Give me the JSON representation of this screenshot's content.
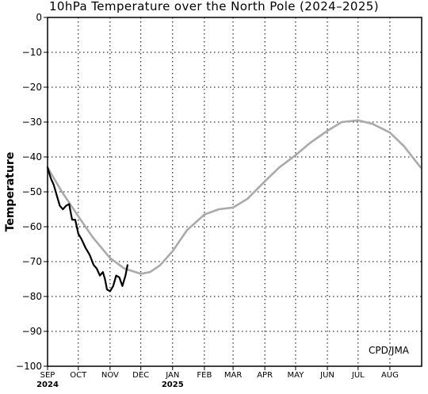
{
  "chart_data": {
    "type": "line",
    "title": "10hPa Temperature over the North Pole (2024–2025)",
    "ylabel": "Temperature",
    "xlabel": "",
    "ylim": [
      -100,
      0
    ],
    "yticks": [
      0,
      -10,
      -20,
      -30,
      -40,
      -50,
      -60,
      -70,
      -80,
      -90,
      -100
    ],
    "xlim": [
      "2024-09-01",
      "2025-08-31"
    ],
    "x_ticks": [
      {
        "label": "SEP",
        "date": "2024-09-01",
        "year": "2024"
      },
      {
        "label": "OCT",
        "date": "2024-10-01"
      },
      {
        "label": "NOV",
        "date": "2024-11-01"
      },
      {
        "label": "DEC",
        "date": "2024-12-01"
      },
      {
        "label": "JAN",
        "date": "2025-01-01",
        "year": "2025"
      },
      {
        "label": "FEB",
        "date": "2025-02-01"
      },
      {
        "label": "MAR",
        "date": "2025-03-01"
      },
      {
        "label": "APR",
        "date": "2025-04-01"
      },
      {
        "label": "MAY",
        "date": "2025-05-01"
      },
      {
        "label": "JUN",
        "date": "2025-06-01"
      },
      {
        "label": "JUL",
        "date": "2025-07-01"
      },
      {
        "label": "AUG",
        "date": "2025-08-01"
      }
    ],
    "grid": true,
    "annotation": "CPD/JMA",
    "series": [
      {
        "color": "#aaaaaa",
        "points": [
          [
            "2024-09-01",
            -43
          ],
          [
            "2024-09-15",
            -50
          ],
          [
            "2024-10-01",
            -57
          ],
          [
            "2024-10-15",
            -63
          ],
          [
            "2024-11-01",
            -69
          ],
          [
            "2024-11-15",
            -72
          ],
          [
            "2024-12-01",
            -73.5
          ],
          [
            "2024-12-10",
            -73
          ],
          [
            "2024-12-20",
            -71
          ],
          [
            "2025-01-01",
            -67
          ],
          [
            "2025-01-15",
            -61
          ],
          [
            "2025-02-01",
            -56.5
          ],
          [
            "2025-02-15",
            -55
          ],
          [
            "2025-03-01",
            -54.5
          ],
          [
            "2025-03-15",
            -52
          ],
          [
            "2025-04-01",
            -47
          ],
          [
            "2025-04-15",
            -43
          ],
          [
            "2025-05-01",
            -39.5
          ],
          [
            "2025-05-15",
            -36
          ],
          [
            "2025-06-01",
            -32.5
          ],
          [
            "2025-06-15",
            -30
          ],
          [
            "2025-07-01",
            -29.5
          ],
          [
            "2025-07-15",
            -30.5
          ],
          [
            "2025-08-01",
            -33
          ],
          [
            "2025-08-15",
            -37
          ],
          [
            "2025-08-31",
            -43
          ]
        ]
      },
      {
        "color": "#000000",
        "points": [
          [
            "2024-09-01",
            -43
          ],
          [
            "2024-09-04",
            -46
          ],
          [
            "2024-09-07",
            -48
          ],
          [
            "2024-09-10",
            -51
          ],
          [
            "2024-09-13",
            -54
          ],
          [
            "2024-09-16",
            -55
          ],
          [
            "2024-09-19",
            -54
          ],
          [
            "2024-09-22",
            -53.5
          ],
          [
            "2024-09-25",
            -58
          ],
          [
            "2024-09-28",
            -58
          ],
          [
            "2024-10-01",
            -62
          ],
          [
            "2024-10-04",
            -63.5
          ],
          [
            "2024-10-08",
            -66
          ],
          [
            "2024-10-12",
            -68
          ],
          [
            "2024-10-16",
            -71
          ],
          [
            "2024-10-19",
            -72
          ],
          [
            "2024-10-22",
            -74
          ],
          [
            "2024-10-25",
            -73
          ],
          [
            "2024-10-27",
            -75
          ],
          [
            "2024-10-29",
            -78
          ],
          [
            "2024-11-01",
            -78.5
          ],
          [
            "2024-11-04",
            -77
          ],
          [
            "2024-11-07",
            -74
          ],
          [
            "2024-11-10",
            -74.5
          ],
          [
            "2024-11-13",
            -77
          ],
          [
            "2024-11-16",
            -74
          ],
          [
            "2024-11-18",
            -71
          ]
        ]
      }
    ]
  }
}
